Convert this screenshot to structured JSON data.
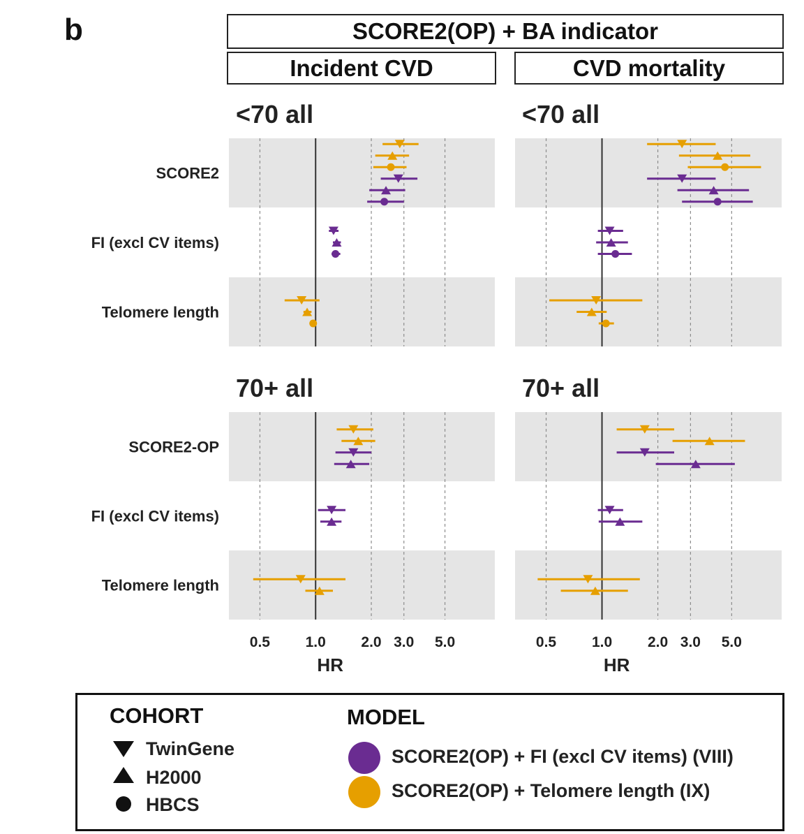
{
  "panel_letter": "b",
  "strips": {
    "top": "SCORE2(OP) + BA indicator",
    "left": "Incident CVD",
    "right": "CVD mortality"
  },
  "legend": {
    "cohort_title": "COHORT",
    "cohorts": [
      "TwinGene",
      "H2000",
      "HBCS"
    ],
    "model_title": "MODEL",
    "models": [
      {
        "label": "SCORE2(OP) + FI (excl CV items) (VIII)",
        "color": "#6a2c91"
      },
      {
        "label": "SCORE2(OP) + Telomere length  (IX)",
        "color": "#e69f00"
      }
    ]
  },
  "chart_data": {
    "type": "forest",
    "xlabel": "HR",
    "x_scale": "log",
    "xlim": [
      0.34,
      9.3
    ],
    "x_ticks": [
      0.5,
      1.0,
      2.0,
      3.0,
      5.0
    ],
    "x_tick_labels": [
      "0.5",
      "1.0",
      "2.0",
      "3.0",
      "5.0"
    ],
    "reference_line": 1.0,
    "colors": {
      "VIII": "#6a2c91",
      "IX": "#e69f00"
    },
    "panels": [
      {
        "outcome": "Incident CVD",
        "group": "<70 all",
        "rows": [
          {
            "label": "SCORE2",
            "points": [
              {
                "model": "IX",
                "cohort": "TwinGene",
                "hr": 2.85,
                "lo": 2.3,
                "hi": 3.6
              },
              {
                "model": "IX",
                "cohort": "H2000",
                "hr": 2.6,
                "lo": 2.1,
                "hi": 3.2
              },
              {
                "model": "IX",
                "cohort": "HBCS",
                "hr": 2.55,
                "lo": 2.05,
                "hi": 3.1
              },
              {
                "model": "VIII",
                "cohort": "TwinGene",
                "hr": 2.8,
                "lo": 2.25,
                "hi": 3.55
              },
              {
                "model": "VIII",
                "cohort": "H2000",
                "hr": 2.4,
                "lo": 1.95,
                "hi": 3.05
              },
              {
                "model": "VIII",
                "cohort": "HBCS",
                "hr": 2.35,
                "lo": 1.9,
                "hi": 3.0
              }
            ]
          },
          {
            "label": "FI (excl CV items)",
            "points": [
              {
                "model": "VIII",
                "cohort": "TwinGene",
                "hr": 1.25,
                "lo": 1.18,
                "hi": 1.33
              },
              {
                "model": "VIII",
                "cohort": "H2000",
                "hr": 1.3,
                "lo": 1.24,
                "hi": 1.37
              },
              {
                "model": "VIII",
                "cohort": "HBCS",
                "hr": 1.28,
                "lo": 1.22,
                "hi": 1.36
              }
            ]
          },
          {
            "label": "Telomere length",
            "points": [
              {
                "model": "IX",
                "cohort": "TwinGene",
                "hr": 0.84,
                "lo": 0.68,
                "hi": 1.05
              },
              {
                "model": "IX",
                "cohort": "H2000",
                "hr": 0.9,
                "lo": 0.86,
                "hi": 0.95
              },
              {
                "model": "IX",
                "cohort": "HBCS",
                "hr": 0.97,
                "lo": 0.94,
                "hi": 1.0
              }
            ]
          }
        ]
      },
      {
        "outcome": "CVD mortality",
        "group": "<70 all",
        "rows": [
          {
            "label": "SCORE2",
            "points": [
              {
                "model": "IX",
                "cohort": "TwinGene",
                "hr": 2.7,
                "lo": 1.75,
                "hi": 4.1
              },
              {
                "model": "IX",
                "cohort": "H2000",
                "hr": 4.2,
                "lo": 2.6,
                "hi": 6.3
              },
              {
                "model": "IX",
                "cohort": "HBCS",
                "hr": 4.6,
                "lo": 2.9,
                "hi": 7.2
              },
              {
                "model": "VIII",
                "cohort": "TwinGene",
                "hr": 2.7,
                "lo": 1.75,
                "hi": 4.1
              },
              {
                "model": "VIII",
                "cohort": "H2000",
                "hr": 4.0,
                "lo": 2.55,
                "hi": 6.2
              },
              {
                "model": "VIII",
                "cohort": "HBCS",
                "hr": 4.2,
                "lo": 2.7,
                "hi": 6.5
              }
            ]
          },
          {
            "label": "FI (excl CV items)",
            "points": [
              {
                "model": "VIII",
                "cohort": "TwinGene",
                "hr": 1.1,
                "lo": 0.95,
                "hi": 1.3
              },
              {
                "model": "VIII",
                "cohort": "H2000",
                "hr": 1.12,
                "lo": 0.93,
                "hi": 1.38
              },
              {
                "model": "VIII",
                "cohort": "HBCS",
                "hr": 1.18,
                "lo": 0.95,
                "hi": 1.45
              }
            ]
          },
          {
            "label": "Telomere length",
            "points": [
              {
                "model": "IX",
                "cohort": "TwinGene",
                "hr": 0.93,
                "lo": 0.52,
                "hi": 1.65
              },
              {
                "model": "IX",
                "cohort": "H2000",
                "hr": 0.88,
                "lo": 0.73,
                "hi": 1.06
              },
              {
                "model": "IX",
                "cohort": "HBCS",
                "hr": 1.05,
                "lo": 0.96,
                "hi": 1.16
              }
            ]
          }
        ]
      },
      {
        "outcome": "Incident CVD",
        "group": "70+ all",
        "rows": [
          {
            "label": "SCORE2-OP",
            "points": [
              {
                "model": "IX",
                "cohort": "TwinGene",
                "hr": 1.6,
                "lo": 1.3,
                "hi": 2.05
              },
              {
                "model": "IX",
                "cohort": "H2000",
                "hr": 1.7,
                "lo": 1.38,
                "hi": 2.1
              },
              {
                "model": "VIII",
                "cohort": "TwinGene",
                "hr": 1.6,
                "lo": 1.28,
                "hi": 2.0
              },
              {
                "model": "VIII",
                "cohort": "H2000",
                "hr": 1.55,
                "lo": 1.26,
                "hi": 1.95
              }
            ]
          },
          {
            "label": "FI (excl CV items)",
            "points": [
              {
                "model": "VIII",
                "cohort": "TwinGene",
                "hr": 1.22,
                "lo": 1.03,
                "hi": 1.45
              },
              {
                "model": "VIII",
                "cohort": "H2000",
                "hr": 1.22,
                "lo": 1.06,
                "hi": 1.38
              }
            ]
          },
          {
            "label": "Telomere length",
            "points": [
              {
                "model": "IX",
                "cohort": "TwinGene",
                "hr": 0.83,
                "lo": 0.46,
                "hi": 1.45
              },
              {
                "model": "IX",
                "cohort": "H2000",
                "hr": 1.05,
                "lo": 0.88,
                "hi": 1.24
              }
            ]
          }
        ]
      },
      {
        "outcome": "CVD mortality",
        "group": "70+ all",
        "rows": [
          {
            "label": "SCORE2-OP",
            "points": [
              {
                "model": "IX",
                "cohort": "TwinGene",
                "hr": 1.7,
                "lo": 1.2,
                "hi": 2.45
              },
              {
                "model": "IX",
                "cohort": "H2000",
                "hr": 3.8,
                "lo": 2.4,
                "hi": 5.9
              },
              {
                "model": "VIII",
                "cohort": "TwinGene",
                "hr": 1.7,
                "lo": 1.2,
                "hi": 2.45
              },
              {
                "model": "VIII",
                "cohort": "H2000",
                "hr": 3.2,
                "lo": 1.95,
                "hi": 5.2
              }
            ]
          },
          {
            "label": "FI (excl CV items)",
            "points": [
              {
                "model": "VIII",
                "cohort": "TwinGene",
                "hr": 1.1,
                "lo": 0.95,
                "hi": 1.3
              },
              {
                "model": "VIII",
                "cohort": "H2000",
                "hr": 1.25,
                "lo": 0.96,
                "hi": 1.65
              }
            ]
          },
          {
            "label": "Telomere length",
            "points": [
              {
                "model": "IX",
                "cohort": "TwinGene",
                "hr": 0.84,
                "lo": 0.45,
                "hi": 1.6
              },
              {
                "model": "IX",
                "cohort": "H2000",
                "hr": 0.92,
                "lo": 0.6,
                "hi": 1.38
              }
            ]
          }
        ]
      }
    ]
  }
}
